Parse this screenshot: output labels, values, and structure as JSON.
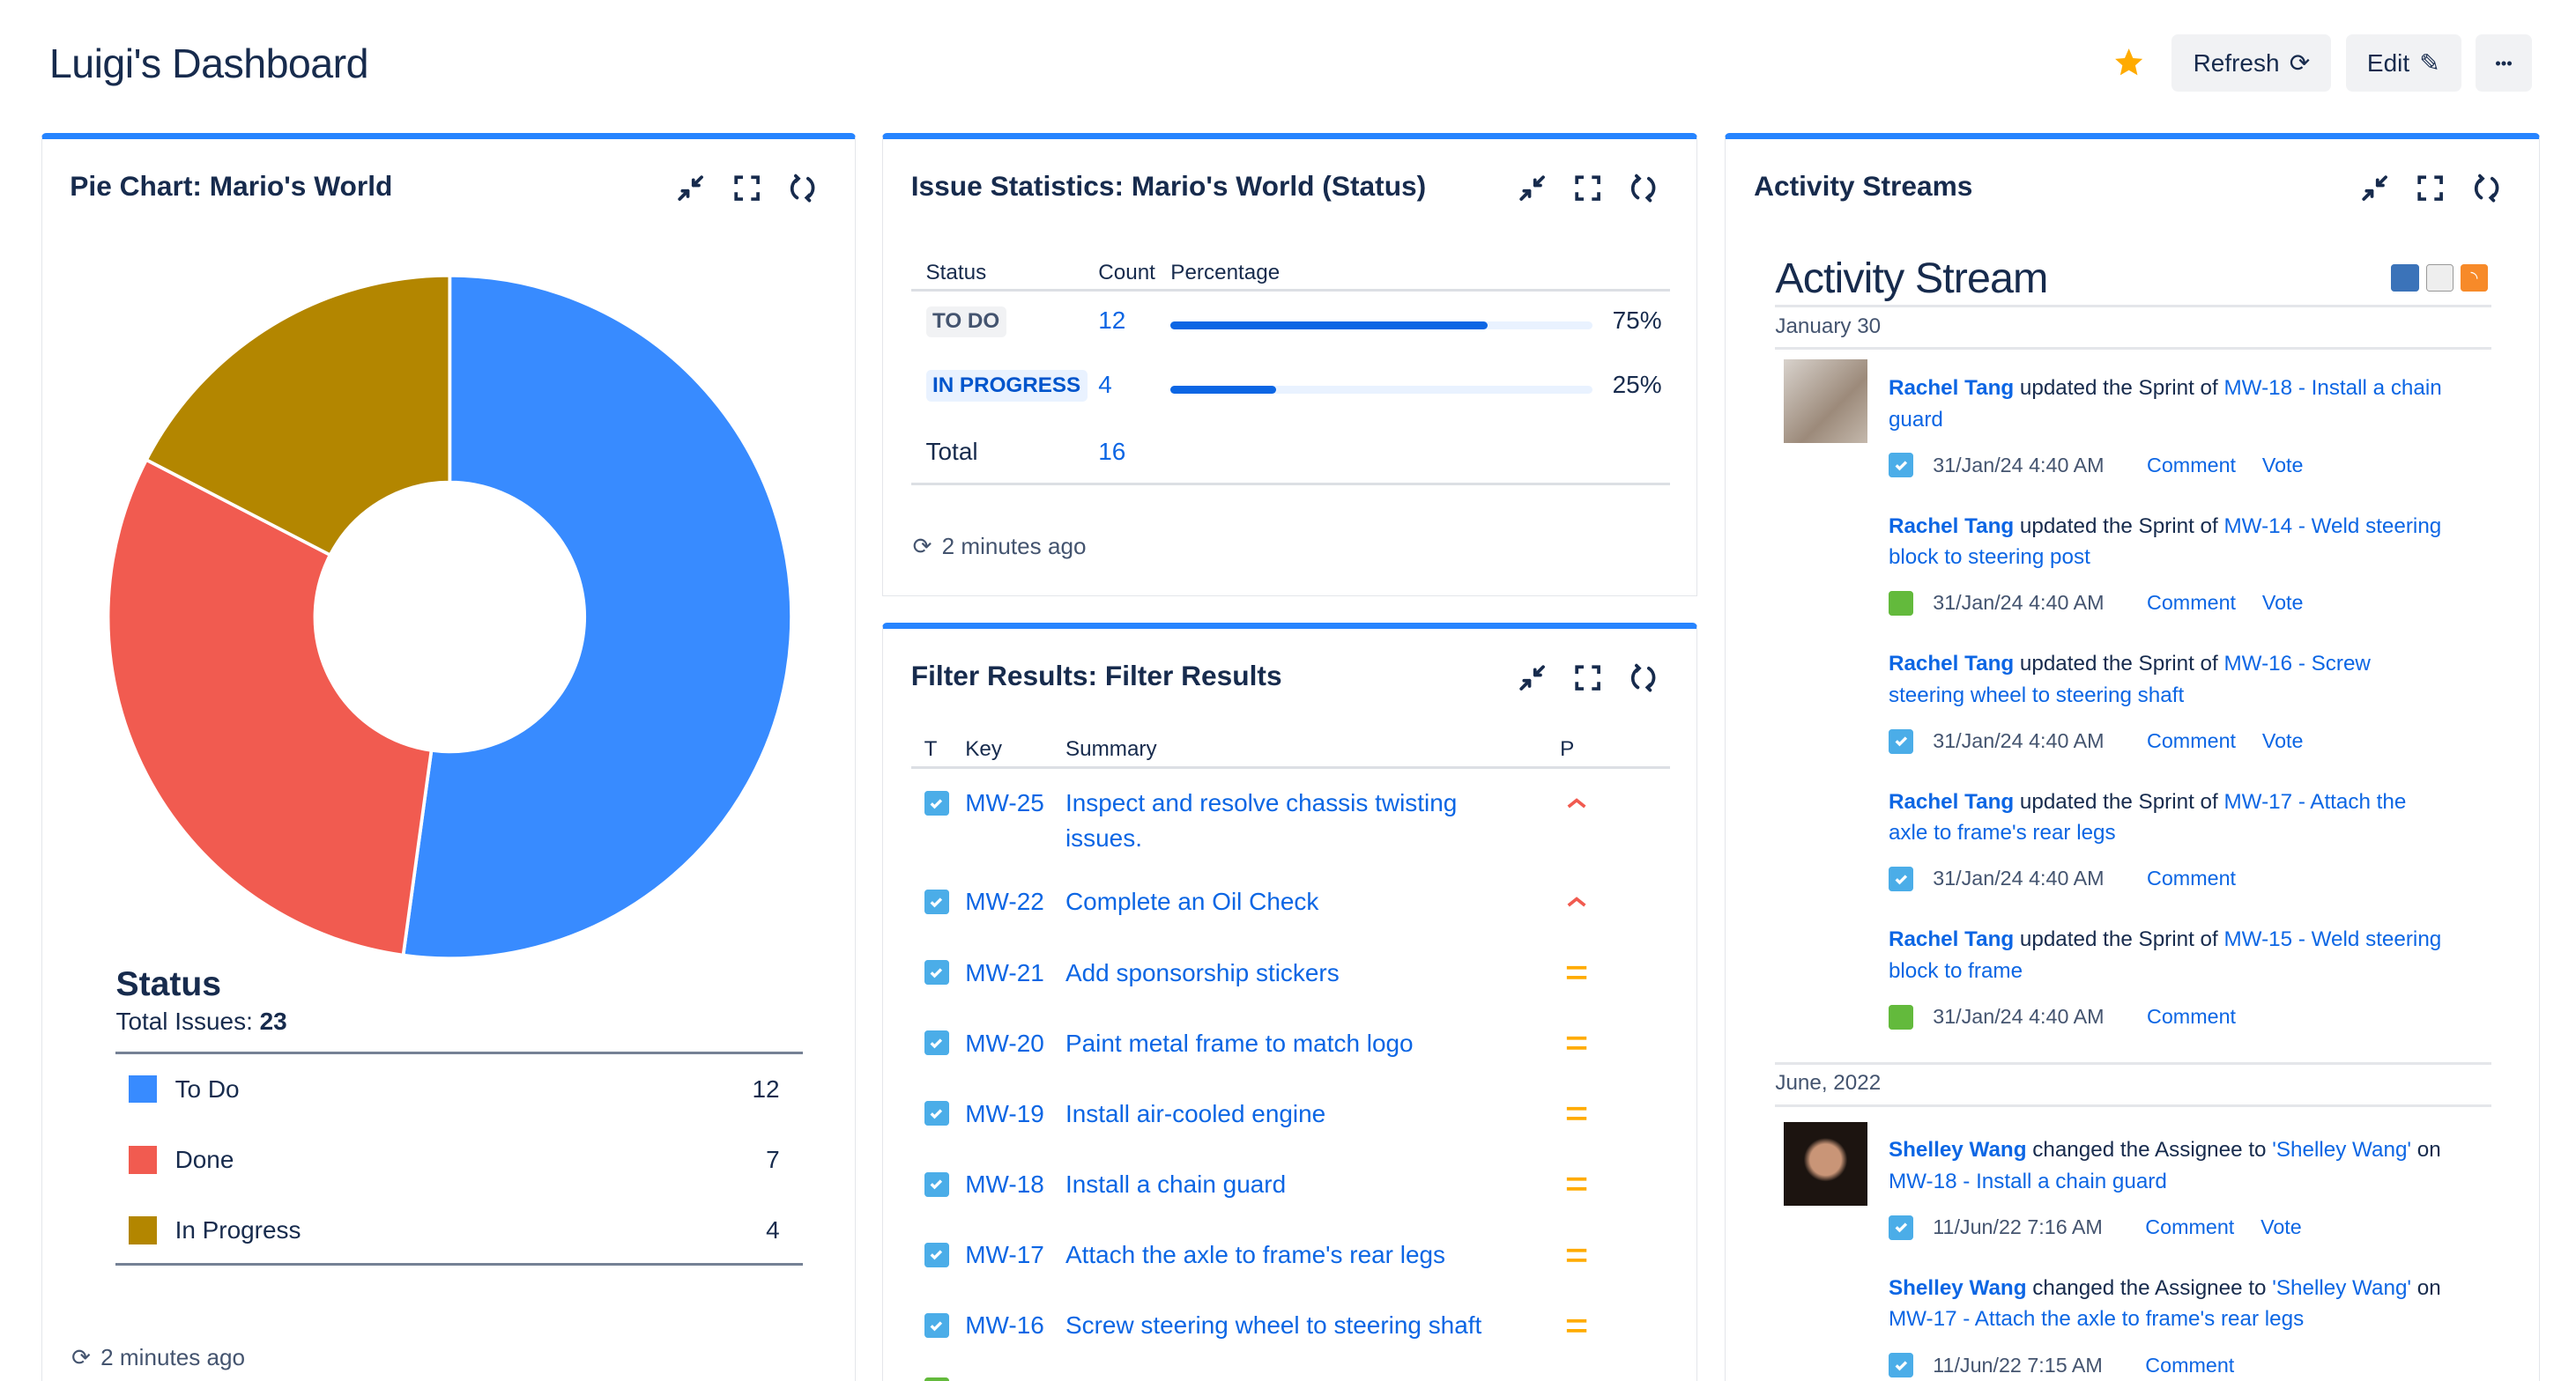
{
  "header": {
    "title": "Luigi's Dashboard",
    "refresh_label": "Refresh",
    "edit_label": "Edit",
    "more_label": "•••"
  },
  "pie_panel": {
    "title": "Pie Chart: Mario's World",
    "legend_title": "Status",
    "total_label": "Total Issues:",
    "total_value": "23",
    "footer": "2 minutes ago"
  },
  "chart_data": {
    "type": "pie",
    "donut": true,
    "title": "Status",
    "categories": [
      "To Do",
      "Done",
      "In Progress"
    ],
    "values": [
      12,
      7,
      4
    ],
    "colors": [
      "#388bff",
      "#f15b50",
      "#b38600"
    ],
    "total": 23,
    "legend_placement": "bottom"
  },
  "stats_panel": {
    "title": "Issue Statistics: Mario's World (Status)",
    "headers": [
      "Status",
      "Count",
      "Percentage"
    ],
    "rows": [
      {
        "status": "TO DO",
        "count": "12",
        "percent": "75%",
        "fraction": 0.75
      },
      {
        "status": "IN PROGRESS",
        "count": "4",
        "percent": "25%",
        "fraction": 0.25
      }
    ],
    "total_label": "Total",
    "total_value": "16",
    "footer": "2 minutes ago"
  },
  "filter_panel": {
    "title": "Filter Results: Filter Results",
    "headers": [
      "T",
      "Key",
      "Summary",
      "P"
    ],
    "rows": [
      {
        "key": "MW-25",
        "summary": "Inspect and resolve chassis twisting issues.",
        "priority": "high"
      },
      {
        "key": "MW-22",
        "summary": "Complete an Oil Check",
        "priority": "high"
      },
      {
        "key": "MW-21",
        "summary": "Add sponsorship stickers",
        "priority": "medium"
      },
      {
        "key": "MW-20",
        "summary": "Paint metal frame to match logo",
        "priority": "medium"
      },
      {
        "key": "MW-19",
        "summary": "Install air-cooled engine",
        "priority": "medium"
      },
      {
        "key": "MW-18",
        "summary": "Install a chain guard",
        "priority": "medium"
      },
      {
        "key": "MW-17",
        "summary": "Attach the axle to frame's rear legs",
        "priority": "medium"
      },
      {
        "key": "MW-16",
        "summary": "Screw steering wheel to steering shaft",
        "priority": "medium"
      }
    ]
  },
  "activity_panel": {
    "title": "Activity Streams",
    "heading": "Activity Stream",
    "groups": [
      {
        "date": "January 30",
        "entries": [
          {
            "user": "Rachel Tang",
            "verb": "updated the Sprint of",
            "target": "MW-18 - Install a chain guard",
            "icon": "task",
            "time": "31/Jan/24 4:40 AM",
            "actions": [
              "Comment",
              "Vote"
            ],
            "avatar": true
          },
          {
            "user": "Rachel Tang",
            "verb": "updated the Sprint of",
            "target": "MW-14 - Weld steering block to steering post",
            "icon": "story",
            "time": "31/Jan/24 4:40 AM",
            "actions": [
              "Comment",
              "Vote"
            ]
          },
          {
            "user": "Rachel Tang",
            "verb": "updated the Sprint of",
            "target": "MW-16 - Screw steering wheel to steering shaft",
            "icon": "task",
            "time": "31/Jan/24 4:40 AM",
            "actions": [
              "Comment",
              "Vote"
            ]
          },
          {
            "user": "Rachel Tang",
            "verb": "updated the Sprint of",
            "target": "MW-17 - Attach the axle to frame's rear legs",
            "icon": "task",
            "time": "31/Jan/24 4:40 AM",
            "actions": [
              "Comment"
            ]
          },
          {
            "user": "Rachel Tang",
            "verb": "updated the Sprint of",
            "target": "MW-15 - Weld steering block to frame",
            "icon": "story",
            "time": "31/Jan/24 4:40 AM",
            "actions": [
              "Comment"
            ]
          }
        ]
      },
      {
        "date": "June, 2022",
        "entries": [
          {
            "user": "Shelley Wang",
            "verb": "changed the Assignee to",
            "quoted": "'Shelley Wang'",
            "suffix": "on",
            "target": "MW-18 - Install a chain guard",
            "icon": "task",
            "time": "11/Jun/22 7:16 AM",
            "actions": [
              "Comment",
              "Vote"
            ],
            "avatar": true
          },
          {
            "user": "Shelley Wang",
            "verb": "changed the Assignee to",
            "quoted": "'Shelley Wang'",
            "suffix": "on",
            "target": "MW-17 - Attach the axle to frame's rear legs",
            "icon": "task",
            "time": "11/Jun/22 7:15 AM",
            "actions": [
              "Comment"
            ]
          }
        ]
      }
    ]
  },
  "colors": {
    "accent": "#2684ff",
    "link": "#0c66e4",
    "star": "#ffab00",
    "priority_high": "#f15b50",
    "priority_medium": "#ffab00"
  }
}
